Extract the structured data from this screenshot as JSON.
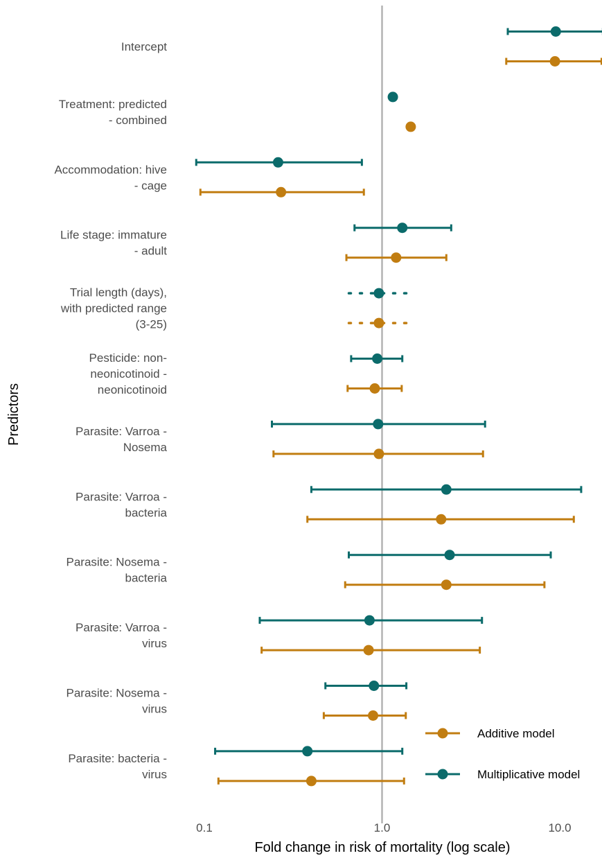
{
  "chart_data": {
    "type": "forest",
    "xlabel": "Fold change in risk of mortality (log scale)",
    "ylabel": "Predictors",
    "x_scale": "log10",
    "xlim": [
      0.07,
      11.3
    ],
    "x_ticks": [
      {
        "value": 0.1,
        "label": "0.1"
      },
      {
        "value": 1.0,
        "label": "1.0"
      },
      {
        "value": 10.0,
        "label": "10.0"
      }
    ],
    "reference_line": 1.0,
    "grid": false,
    "legend_position": "bottom-right",
    "series": [
      {
        "name": "Additive model",
        "color": "#c17d11"
      },
      {
        "name": "Multiplicative model",
        "color": "#0b6b6b"
      }
    ],
    "predictors": [
      {
        "label": [
          "Intercept"
        ],
        "multiplicative": {
          "est": 9.5,
          "lo": 5.1,
          "hi": 17.5,
          "style": "solid"
        },
        "additive": {
          "est": 9.4,
          "lo": 5.0,
          "hi": 17.2,
          "style": "solid"
        }
      },
      {
        "label": [
          "Treatment: predicted",
          "- combined"
        ],
        "multiplicative": {
          "est": 1.15,
          "lo": null,
          "hi": null,
          "style": "solid"
        },
        "additive": {
          "est": 1.45,
          "lo": null,
          "hi": null,
          "style": "solid"
        }
      },
      {
        "label": [
          "Accommodation: hive",
          "- cage"
        ],
        "multiplicative": {
          "est": 0.26,
          "lo": 0.09,
          "hi": 0.77,
          "style": "solid"
        },
        "additive": {
          "est": 0.27,
          "lo": 0.095,
          "hi": 0.79,
          "style": "solid"
        }
      },
      {
        "label": [
          "Life stage: immature",
          "- adult"
        ],
        "multiplicative": {
          "est": 1.3,
          "lo": 0.7,
          "hi": 2.45,
          "style": "solid"
        },
        "additive": {
          "est": 1.2,
          "lo": 0.63,
          "hi": 2.3,
          "style": "solid"
        }
      },
      {
        "label": [
          "Trial length (days),",
          "with predicted range",
          "(3-25)"
        ],
        "multiplicative": {
          "est": 0.96,
          "lo": 0.65,
          "hi": 1.53,
          "style": "dotted"
        },
        "additive": {
          "est": 0.96,
          "lo": 0.65,
          "hi": 1.53,
          "style": "dotted"
        }
      },
      {
        "label": [
          "Pesticide: non-",
          "neonicotinoid -",
          "neonicotinoid"
        ],
        "multiplicative": {
          "est": 0.94,
          "lo": 0.67,
          "hi": 1.3,
          "style": "solid"
        },
        "additive": {
          "est": 0.91,
          "lo": 0.64,
          "hi": 1.29,
          "style": "solid"
        }
      },
      {
        "label": [
          "Parasite: Varroa -",
          "Nosema"
        ],
        "multiplicative": {
          "est": 0.95,
          "lo": 0.24,
          "hi": 3.8,
          "style": "solid"
        },
        "additive": {
          "est": 0.96,
          "lo": 0.245,
          "hi": 3.7,
          "style": "solid"
        }
      },
      {
        "label": [
          "Parasite: Varroa -",
          "bacteria"
        ],
        "multiplicative": {
          "est": 2.3,
          "lo": 0.4,
          "hi": 13.2,
          "style": "solid"
        },
        "additive": {
          "est": 2.15,
          "lo": 0.38,
          "hi": 12.0,
          "style": "solid"
        }
      },
      {
        "label": [
          "Parasite: Nosema -",
          "bacteria"
        ],
        "multiplicative": {
          "est": 2.4,
          "lo": 0.65,
          "hi": 8.9,
          "style": "solid"
        },
        "additive": {
          "est": 2.3,
          "lo": 0.62,
          "hi": 8.2,
          "style": "solid"
        }
      },
      {
        "label": [
          "Parasite: Varroa -",
          "virus"
        ],
        "multiplicative": {
          "est": 0.85,
          "lo": 0.205,
          "hi": 3.65,
          "style": "solid"
        },
        "additive": {
          "est": 0.84,
          "lo": 0.21,
          "hi": 3.55,
          "style": "solid"
        }
      },
      {
        "label": [
          "Parasite: Nosema -",
          "virus"
        ],
        "multiplicative": {
          "est": 0.9,
          "lo": 0.48,
          "hi": 1.37,
          "style": "solid"
        },
        "additive": {
          "est": 0.89,
          "lo": 0.47,
          "hi": 1.36,
          "style": "solid"
        }
      },
      {
        "label": [
          "Parasite: bacteria -",
          "virus"
        ],
        "multiplicative": {
          "est": 0.38,
          "lo": 0.115,
          "hi": 1.3,
          "style": "solid"
        },
        "additive": {
          "est": 0.4,
          "lo": 0.12,
          "hi": 1.33,
          "style": "solid"
        }
      }
    ]
  }
}
